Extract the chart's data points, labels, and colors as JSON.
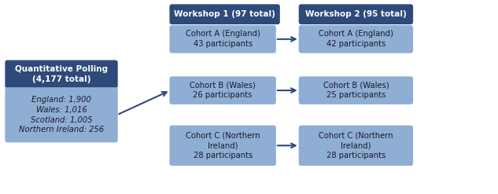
{
  "dark_blue": "#2E4A7A",
  "light_blue": "#8FAED4",
  "white": "#FFFFFF",
  "text_dark": "#1a1a2e",
  "bg_color": "#FFFFFF",
  "left_box_header": "Quantitative Polling\n(4,177 total)",
  "left_box_body": "England: 1,900\nWales: 1,016\nScotland: 1,005\nNorthern Ireland: 256",
  "workshop1_header": "Workshop 1 (97 total)",
  "workshop2_header": "Workshop 2 (95 total)",
  "cohorts_w1": [
    "Cohort A (England)\n43 participants",
    "Cohort B (Wales)\n26 participants",
    "Cohort C (Northern\nIreland)\n28 participants"
  ],
  "cohorts_w2": [
    "Cohort A (England)\n42 participants",
    "Cohort B (Wales)\n25 participants",
    "Cohort C (Northern\nIreland)\n28 participants"
  ],
  "figsize": [
    6.33,
    2.47
  ],
  "dpi": 100
}
